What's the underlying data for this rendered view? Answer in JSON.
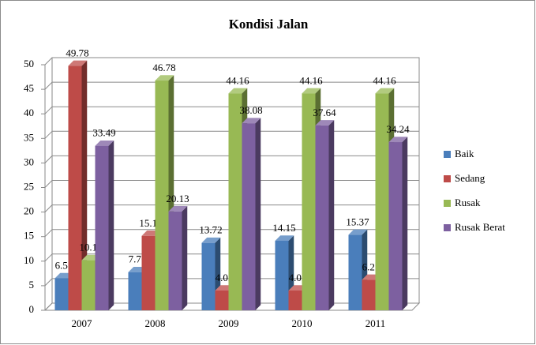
{
  "chart_data": {
    "type": "bar3d",
    "title": "Kondisi Jalan",
    "categories": [
      "2007",
      "2008",
      "2009",
      "2010",
      "2011"
    ],
    "series": [
      {
        "name": "Baik",
        "color": "#4a7ebb",
        "values": [
          6.52,
          7.76,
          13.72,
          14.15,
          15.37
        ]
      },
      {
        "name": "Sedang",
        "color": "#be4b48",
        "values": [
          49.78,
          15.15,
          4.02,
          4.02,
          6.21
        ]
      },
      {
        "name": "Rusak",
        "color": "#98b954",
        "values": [
          10.19,
          46.78,
          44.16,
          44.16,
          44.16
        ]
      },
      {
        "name": "Rusak Berat",
        "color": "#7d60a0",
        "values": [
          33.49,
          20.13,
          38.08,
          37.64,
          34.24
        ]
      }
    ],
    "ylim": [
      0,
      50
    ],
    "yticks": [
      0,
      5,
      10,
      15,
      20,
      25,
      30,
      35,
      40,
      45,
      50
    ],
    "grid": true,
    "legend": "right"
  }
}
